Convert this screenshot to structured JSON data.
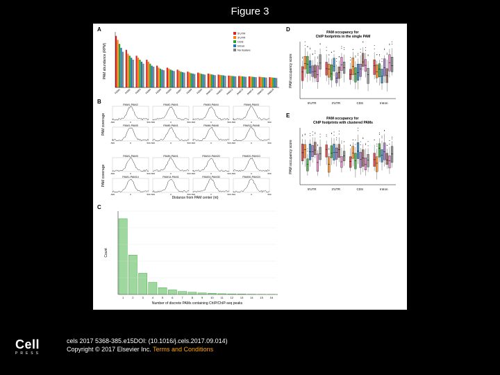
{
  "title": "Figure 3",
  "citation_line1": "cels 2017 5368-385.e15DOI: (10.1016/j.cels.2017.09.014)",
  "citation_line2_prefix": "Copyright © 2017 Elsevier Inc. ",
  "citation_link": "Terms and Conditions",
  "logo_main": "Cell",
  "logo_sub": "PRESS",
  "panels": {
    "A": {
      "label": "A",
      "ylabel": "PAM abundance (RPM)",
      "legend": [
        {
          "label": "5'UTR",
          "color": "#d62728"
        },
        {
          "label": "3'UTR",
          "color": "#ff7f0e"
        },
        {
          "label": "CDS",
          "color": "#2ca02c"
        },
        {
          "label": "Intron",
          "color": "#1f77b4"
        },
        {
          "label": "No feature",
          "color": "#7f7f7f"
        }
      ],
      "categories": [
        "PAM1",
        "PAM2",
        "PAM3",
        "PAM4",
        "PAM5",
        "PAM6",
        "PAM7",
        "PAM8",
        "PAM9",
        "PAM10",
        "PAM11",
        "PAM12",
        "PAM13",
        "PAM14",
        "PAM15",
        "PAM16"
      ],
      "series": [
        {
          "color": "#d62728",
          "values": [
            2600,
            1900,
            1600,
            1400,
            1100,
            1000,
            900,
            800,
            750,
            700,
            650,
            600,
            580,
            560,
            540,
            520
          ]
        },
        {
          "color": "#ff7f0e",
          "values": [
            2400,
            1700,
            1500,
            1300,
            1000,
            950,
            850,
            760,
            720,
            680,
            630,
            590,
            570,
            550,
            530,
            510
          ]
        },
        {
          "color": "#2ca02c",
          "values": [
            2200,
            1600,
            1400,
            1200,
            950,
            900,
            800,
            720,
            690,
            660,
            620,
            580,
            560,
            540,
            520,
            500
          ]
        },
        {
          "color": "#1f77b4",
          "values": [
            2000,
            1500,
            1300,
            1100,
            900,
            860,
            770,
            700,
            670,
            640,
            610,
            570,
            550,
            530,
            510,
            490
          ]
        },
        {
          "color": "#7f7f7f",
          "values": [
            1800,
            1400,
            1200,
            1050,
            870,
            830,
            750,
            680,
            650,
            620,
            590,
            560,
            540,
            520,
            500,
            480
          ]
        }
      ],
      "ymax": 2800
    },
    "B": {
      "label": "B",
      "ylabel": "PAM coverage",
      "xlabel": "Distance from PAM center (nt)",
      "subplot_titles": [
        "PAM1-PAM2",
        "PAM2-PAM1",
        "PAM3-PAM4",
        "PAM4-PAM3",
        "PAM1-PAM5",
        "PAM5-PAM1",
        "PAM6-PAM8",
        "PAM12-PAM6",
        "PAM1-PAM9",
        "PAM9-PAM1",
        "PAM10-PAM20",
        "PAM20-PAM10",
        "PAM1-PAM14",
        "PAM14-PAM1",
        "PAM24-PAM30",
        "PAM30-PAM24"
      ],
      "xrange": [
        -500,
        500
      ],
      "line_color": "#000000"
    },
    "C": {
      "label": "C",
      "ylabel": "Count",
      "xlabel": "Number of discrete PAMs containing ChIP/ChIP-seq peaks",
      "bar_color": "#9fd89f",
      "bar_border": "#2ca02c",
      "categories": [
        "1",
        "2",
        "3",
        "4",
        "5",
        "6",
        "7",
        "8",
        "9",
        "10",
        "11",
        "12",
        "13",
        "14",
        "15",
        "16"
      ],
      "values": [
        100,
        52,
        28,
        16,
        9,
        6,
        4,
        3,
        2,
        1.5,
        1,
        0.8,
        0.6,
        0.4,
        0.3,
        0.2
      ],
      "ymax": 110
    },
    "D": {
      "label": "D",
      "title": "PAM occupancy for\nChIP footprints in the single PAM",
      "ylabel": "PAM occupancy score",
      "xlabel_groups": [
        "5'UTR",
        "3'UTR",
        "CDS",
        "Intron"
      ],
      "box_colors": [
        "#d62728",
        "#ff7f0e",
        "#2ca02c",
        "#1f77b4",
        "#9467bd",
        "#8c564b",
        "#e377c2",
        "#7f7f7f"
      ],
      "yrange": [
        0,
        100
      ]
    },
    "E": {
      "label": "E",
      "title": "PAM occupancy for\nChIP footprints with clustered PAMs",
      "ylabel": "PAM occupancy score",
      "xlabel_groups": [
        "5'UTR",
        "3'UTR",
        "CDS",
        "Intron"
      ],
      "box_colors": [
        "#d62728",
        "#ff7f0e",
        "#2ca02c",
        "#1f77b4",
        "#9467bd",
        "#8c564b",
        "#e377c2",
        "#7f7f7f"
      ],
      "yrange": [
        0,
        100
      ]
    }
  }
}
